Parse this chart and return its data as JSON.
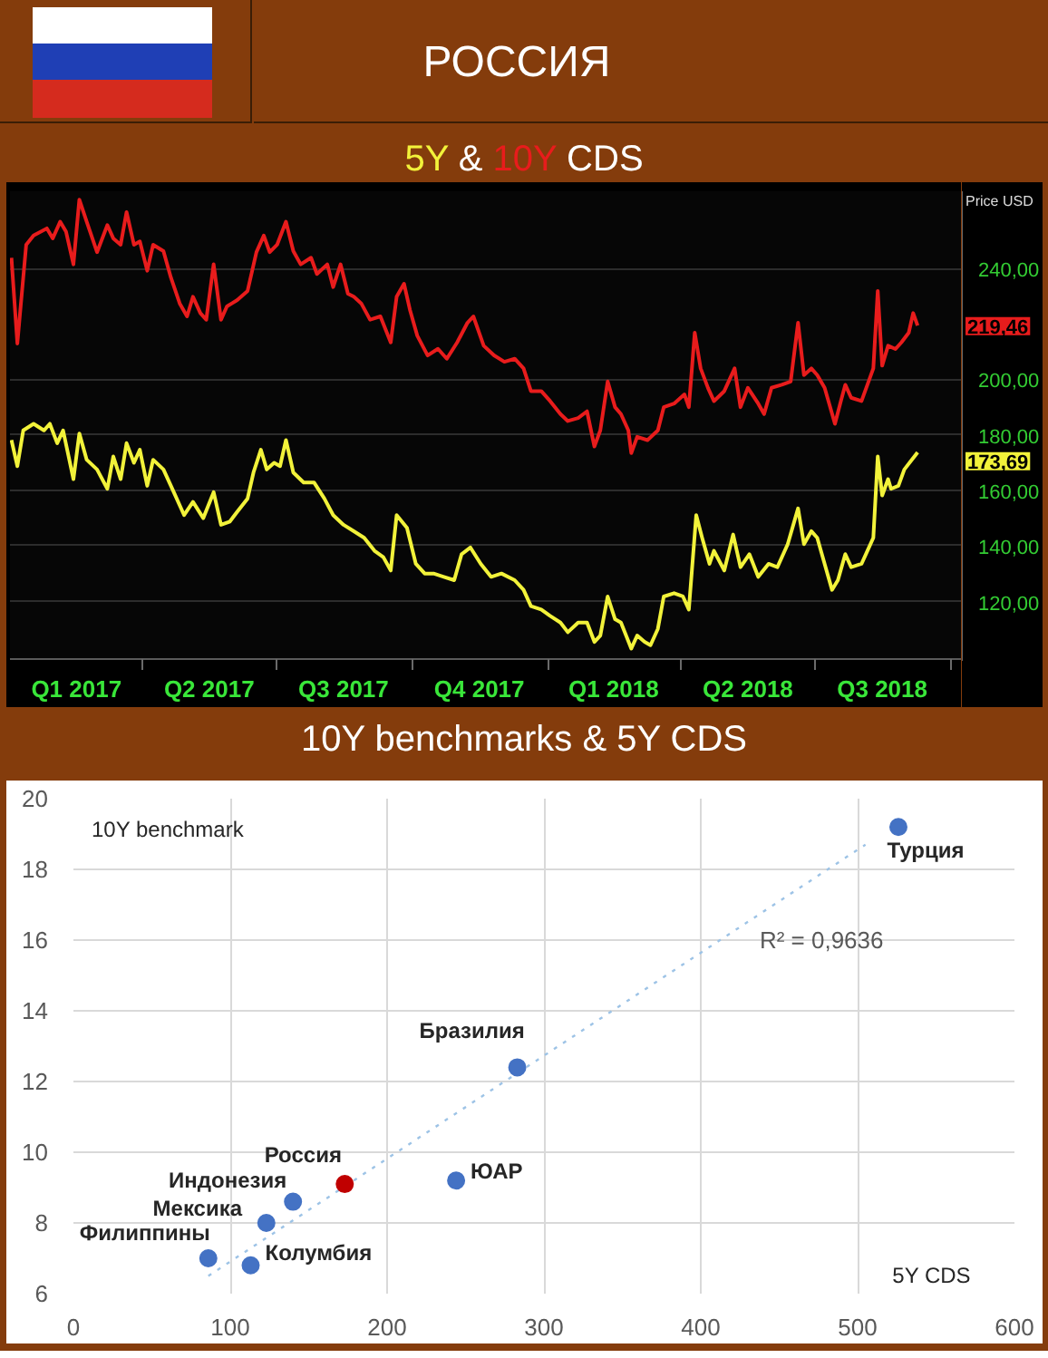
{
  "chart_data": [
    {
      "type": "line",
      "title": "РОССИЯ",
      "subtitle": "5Y & 10Y CDS",
      "ylabel": "Price USD",
      "xlim": [
        "2017-01-01",
        "2018-10-08"
      ],
      "xticks": [
        {
          "value": "2017-02-15",
          "label": "Q1 2017"
        },
        {
          "value": "2017-04-01",
          "label": null
        },
        {
          "value": "2017-05-16",
          "label": "Q2 2017"
        },
        {
          "value": "2017-07-01",
          "label": null
        },
        {
          "value": "2017-08-15",
          "label": "Q3 2017"
        },
        {
          "value": "2017-10-01",
          "label": null
        },
        {
          "value": "2017-11-15",
          "label": "Q4 2017"
        },
        {
          "value": "2018-01-01",
          "label": null
        },
        {
          "value": "2018-02-14",
          "label": "Q1 2018"
        },
        {
          "value": "2018-04-01",
          "label": null
        },
        {
          "value": "2018-05-16",
          "label": "Q2 2018"
        },
        {
          "value": "2018-07-01",
          "label": null
        },
        {
          "value": "2018-08-15",
          "label": "Q3 2018"
        },
        {
          "value": "2018-10-01",
          "label": null
        }
      ],
      "ylim": [
        99,
        268
      ],
      "yticks": [
        {
          "value": 120,
          "label": "120,00"
        },
        {
          "value": 140,
          "label": "140,00"
        },
        {
          "value": 160,
          "label": "160,00"
        },
        {
          "value": 180,
          "label": "180,00"
        },
        {
          "value": 200,
          "label": "200,00"
        },
        {
          "value": 240,
          "label": "240,00"
        }
      ],
      "grid": "y",
      "series": [
        {
          "color": "#f2f23a",
          "x": [
            "2017-01-02",
            "2017-01-06",
            "2017-01-10",
            "2017-01-17",
            "2017-01-24",
            "2017-01-28",
            "2017-02-02",
            "2017-02-06",
            "2017-02-13",
            "2017-02-17",
            "2017-02-22",
            "2017-03-01",
            "2017-03-08",
            "2017-03-12",
            "2017-03-17",
            "2017-03-21",
            "2017-03-26",
            "2017-03-30",
            "2017-04-04",
            "2017-04-08",
            "2017-04-15",
            "2017-04-22",
            "2017-04-29",
            "2017-05-05",
            "2017-05-12",
            "2017-05-19",
            "2017-05-24",
            "2017-05-30",
            "2017-06-04",
            "2017-06-11",
            "2017-06-15",
            "2017-06-20",
            "2017-06-24",
            "2017-06-29",
            "2017-07-03",
            "2017-07-07",
            "2017-07-12",
            "2017-07-19",
            "2017-07-26",
            "2017-08-02",
            "2017-08-08",
            "2017-08-15",
            "2017-08-22",
            "2017-08-29",
            "2017-09-05",
            "2017-09-11",
            "2017-09-16",
            "2017-09-20",
            "2017-09-27",
            "2017-10-03",
            "2017-10-09",
            "2017-10-15",
            "2017-10-22",
            "2017-10-29",
            "2017-11-03",
            "2017-11-09",
            "2017-11-16",
            "2017-11-23",
            "2017-11-30",
            "2017-12-09",
            "2017-12-15",
            "2017-12-20",
            "2017-12-27",
            "2018-01-02",
            "2018-01-09",
            "2018-01-14",
            "2018-01-21",
            "2018-01-27",
            "2018-02-01",
            "2018-02-05",
            "2018-02-10",
            "2018-02-15",
            "2018-02-19",
            "2018-02-26",
            "2018-03-02",
            "2018-03-07",
            "2018-03-11",
            "2018-03-16",
            "2018-03-20",
            "2018-03-27",
            "2018-04-02",
            "2018-04-06",
            "2018-04-11",
            "2018-04-15",
            "2018-04-20",
            "2018-04-23",
            "2018-04-30",
            "2018-05-06",
            "2018-05-11",
            "2018-05-17",
            "2018-05-23",
            "2018-05-30",
            "2018-06-05",
            "2018-06-12",
            "2018-06-19",
            "2018-06-23",
            "2018-06-28",
            "2018-07-02",
            "2018-07-07",
            "2018-07-12",
            "2018-07-16",
            "2018-07-21",
            "2018-07-25",
            "2018-08-01",
            "2018-08-05",
            "2018-08-09",
            "2018-08-12",
            "2018-08-15",
            "2018-08-19",
            "2018-08-21",
            "2018-08-26",
            "2018-08-30",
            "2018-09-08"
          ],
          "values": [
            178.1,
            168.7,
            181.6,
            184,
            181.6,
            184,
            177,
            181.6,
            164,
            180.5,
            171,
            167.5,
            160.5,
            172.2,
            164,
            177,
            169.9,
            174.6,
            161.6,
            171,
            167.5,
            159.3,
            151,
            155.8,
            149.9,
            159.3,
            147.5,
            148.7,
            152.2,
            157,
            166.4,
            174.6,
            167.5,
            169.9,
            168.7,
            178.1,
            166.4,
            162.8,
            162.8,
            157,
            151,
            147.5,
            145.2,
            142.8,
            138.1,
            135.8,
            131,
            151,
            146.4,
            133.4,
            129.9,
            129.9,
            128.7,
            127.5,
            136.9,
            139.3,
            133.4,
            128.7,
            129.9,
            127.5,
            124,
            118.1,
            116.9,
            114.6,
            112.2,
            108.7,
            112.2,
            112.2,
            105.2,
            107.5,
            121.6,
            113.4,
            112.2,
            102.8,
            107.5,
            105.2,
            104,
            109.9,
            121.6,
            122.8,
            121.6,
            116.9,
            151,
            142.8,
            133.4,
            138.1,
            131,
            144,
            132.2,
            136.9,
            128.7,
            133.4,
            132.2,
            140.5,
            153.4,
            140.5,
            145.2,
            142.8,
            133.4,
            124,
            127.5,
            136.9,
            132.2,
            133.4,
            138.1,
            142.8,
            172.2,
            158.1,
            164,
            160.5,
            161.6,
            167.5,
            173.69
          ]
        },
        {
          "color": "#e81c1c",
          "x": [
            "2017-01-02",
            "2017-01-06",
            "2017-01-12",
            "2017-01-17",
            "2017-01-26",
            "2017-01-30",
            "2017-02-04",
            "2017-02-08",
            "2017-02-13",
            "2017-02-17",
            "2017-02-22",
            "2017-03-01",
            "2017-03-08",
            "2017-03-12",
            "2017-03-17",
            "2017-03-21",
            "2017-03-26",
            "2017-03-30",
            "2017-04-04",
            "2017-04-08",
            "2017-04-15",
            "2017-04-20",
            "2017-04-26",
            "2017-05-01",
            "2017-05-05",
            "2017-05-10",
            "2017-05-14",
            "2017-05-19",
            "2017-05-24",
            "2017-05-28",
            "2017-06-04",
            "2017-06-11",
            "2017-06-17",
            "2017-06-22",
            "2017-06-26",
            "2017-07-01",
            "2017-07-07",
            "2017-07-12",
            "2017-07-17",
            "2017-07-24",
            "2017-07-28",
            "2017-08-04",
            "2017-08-08",
            "2017-08-13",
            "2017-08-18",
            "2017-08-22",
            "2017-08-27",
            "2017-09-02",
            "2017-09-09",
            "2017-09-16",
            "2017-09-20",
            "2017-09-25",
            "2017-09-29",
            "2017-10-04",
            "2017-10-11",
            "2017-10-18",
            "2017-10-24",
            "2017-10-31",
            "2017-11-07",
            "2017-11-11",
            "2017-11-18",
            "2017-11-25",
            "2017-12-02",
            "2017-12-09",
            "2017-12-15",
            "2017-12-20",
            "2017-12-27",
            "2018-01-02",
            "2018-01-09",
            "2018-01-14",
            "2018-01-21",
            "2018-01-27",
            "2018-02-01",
            "2018-02-05",
            "2018-02-10",
            "2018-02-15",
            "2018-02-19",
            "2018-02-24",
            "2018-02-26",
            "2018-03-02",
            "2018-03-09",
            "2018-03-16",
            "2018-03-20",
            "2018-03-27",
            "2018-04-03",
            "2018-04-06",
            "2018-04-10",
            "2018-04-14",
            "2018-04-19",
            "2018-04-23",
            "2018-04-30",
            "2018-05-07",
            "2018-05-11",
            "2018-05-16",
            "2018-05-23",
            "2018-05-27",
            "2018-06-01",
            "2018-06-08",
            "2018-06-14",
            "2018-06-19",
            "2018-06-23",
            "2018-06-28",
            "2018-07-02",
            "2018-07-07",
            "2018-07-14",
            "2018-07-18",
            "2018-07-21",
            "2018-07-25",
            "2018-08-01",
            "2018-08-05",
            "2018-08-09",
            "2018-08-12",
            "2018-08-15",
            "2018-08-19",
            "2018-08-24",
            "2018-08-28",
            "2018-09-02",
            "2018-09-05",
            "2018-09-08"
          ],
          "values": [
            244,
            213,
            248.7,
            252,
            254.6,
            251,
            257,
            253.4,
            241.6,
            265,
            257,
            246,
            255.8,
            251,
            248.7,
            260.5,
            248.7,
            249.9,
            239.3,
            248.7,
            246.4,
            236.9,
            227.5,
            222.8,
            229.9,
            224,
            221.6,
            241.6,
            221.6,
            226.4,
            228.7,
            232,
            246,
            252,
            246,
            248.7,
            257,
            246.4,
            241.6,
            244,
            238.1,
            241.6,
            233.4,
            241.6,
            231,
            229.9,
            227.5,
            221.6,
            222.8,
            213.4,
            229.9,
            234.6,
            225.2,
            215.8,
            208.7,
            211.1,
            207.5,
            213.4,
            220.5,
            222.8,
            212.2,
            208.7,
            206.4,
            207.5,
            204,
            195.8,
            195.8,
            192.2,
            187.5,
            185,
            186.1,
            188.5,
            175.8,
            181.6,
            199.3,
            190,
            187.5,
            181.6,
            173.4,
            179.3,
            178.1,
            181.6,
            190,
            191.3,
            194.6,
            190,
            216.9,
            204,
            196.9,
            192.2,
            195.8,
            204,
            190,
            197,
            191.3,
            187.5,
            197,
            198.1,
            199.3,
            220.5,
            201.6,
            204,
            201.6,
            197,
            184,
            192.2,
            198.1,
            193.4,
            192.2,
            198.1,
            204,
            232,
            205,
            212.2,
            211,
            213.4,
            216.9,
            224,
            219.46
          ]
        }
      ],
      "annotations": [
        "173,69",
        "219,46"
      ]
    },
    {
      "type": "scatter",
      "title": "10Y benchmarks & 5Y CDS",
      "xlabel": "5Y CDS",
      "ylabel": "10Y benchmark",
      "xlim": [
        0,
        600
      ],
      "xticks": [
        0,
        100,
        200,
        300,
        400,
        500,
        600
      ],
      "ylim": [
        6,
        20
      ],
      "yticks": [
        6,
        8,
        10,
        12,
        14,
        16,
        18,
        20
      ],
      "grid": true,
      "marker": "circle",
      "series": [
        {
          "name": "Турция",
          "color": "#4472c4",
          "x": [
            526
          ],
          "values": [
            19.2
          ]
        },
        {
          "name": "Бразилия",
          "color": "#4472c4",
          "x": [
            283
          ],
          "values": [
            12.4
          ]
        },
        {
          "name": "ЮАР",
          "color": "#4472c4",
          "x": [
            244
          ],
          "values": [
            9.2
          ]
        },
        {
          "name": "Россия",
          "color": "#c00000",
          "x": [
            173
          ],
          "values": [
            9.1
          ]
        },
        {
          "name": "Индонезия",
          "color": "#4472c4",
          "x": [
            140
          ],
          "values": [
            8.6
          ]
        },
        {
          "name": "Мексика",
          "color": "#4472c4",
          "x": [
            123
          ],
          "values": [
            8.0
          ]
        },
        {
          "name": "Филиппины",
          "color": "#4472c4",
          "x": [
            86
          ],
          "values": [
            7.0
          ]
        },
        {
          "name": "Колумбия",
          "color": "#4472c4",
          "x": [
            113
          ],
          "values": [
            6.8
          ]
        },
        {
          "type": "line",
          "color": "#9dc3e6",
          "line_style": "dotted",
          "marker": "none",
          "x": [
            86,
            505
          ],
          "values": [
            6.5,
            18.7
          ]
        }
      ],
      "annotations": [
        "R² = 0,9636"
      ]
    }
  ]
}
